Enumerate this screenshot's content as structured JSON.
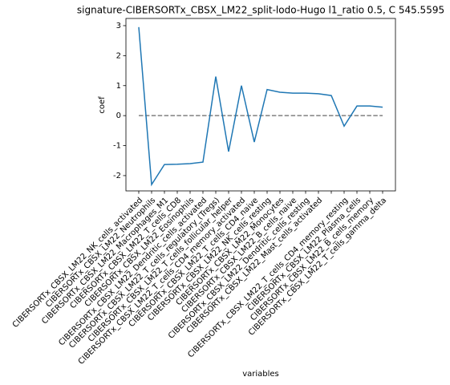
{
  "chart_data": {
    "type": "line",
    "title": "signature-CIBERSORTx_CBSX_LM22_split-lodo-Hugo l1_ratio 0.5, C 545.5595",
    "xlabel": "variables",
    "ylabel": "coef",
    "categories": [
      "CIBERSORTx_CBSX_LM22_NK_cells_activated",
      "CIBERSORTx_CBSX_LM22_Neutrophils",
      "CIBERSORTx_CBSX_LM22_Macrophages_M1",
      "CIBERSORTx_CBSX_LM22_T_cells_CD8",
      "CIBERSORTx_CBSX_LM22_Eosinophils",
      "CIBERSORTx_CBSX_LM22_Dendritic_cells_activated",
      "CIBERSORTx_CBSX_LM22_T_cells_regulatory_(Tregs)",
      "CIBERSORTx_CBSX_LM22_T_cells_follicular_helper",
      "CIBERSORTx_CBSX_LM22_T_cells_CD4_memory_activated",
      "CIBERSORTx_CBSX_LM22_T_cells_CD4_naive",
      "CIBERSORTx_CBSX_LM22_NK_cells_resting",
      "CIBERSORTx_CBSX_LM22_Monocytes",
      "CIBERSORTx_CBSX_LM22_B_cells_naive",
      "CIBERSORTx_CBSX_LM22_Dendritic_cells_resting",
      "CIBERSORTx_CBSX_LM22_Mast_cells_activated",
      null,
      "CIBERSORTx_CBSX_LM22_T_cells_CD4_memory_resting",
      "CIBERSORTx_CBSX_LM22_Plasma_cells",
      "CIBERSORTx_CBSX_LM22_B_cells_memory",
      "CIBERSORTx_CBSX_LM22_T_cells_gamma_delta"
    ],
    "series": [
      {
        "name": "coef",
        "color": "#1f77b4",
        "values": [
          2.95,
          -2.3,
          -1.63,
          -1.62,
          -1.6,
          -1.55,
          1.3,
          -1.2,
          1.0,
          -0.88,
          0.87,
          0.78,
          0.75,
          0.75,
          0.73,
          0.67,
          -0.35,
          0.32,
          0.32,
          0.28
        ]
      }
    ],
    "hline": {
      "value": 0,
      "color": "#808080"
    },
    "ylim": [
      -2.51,
      3.24
    ],
    "yticks": [
      -2,
      -1,
      0,
      1,
      2,
      3
    ]
  }
}
